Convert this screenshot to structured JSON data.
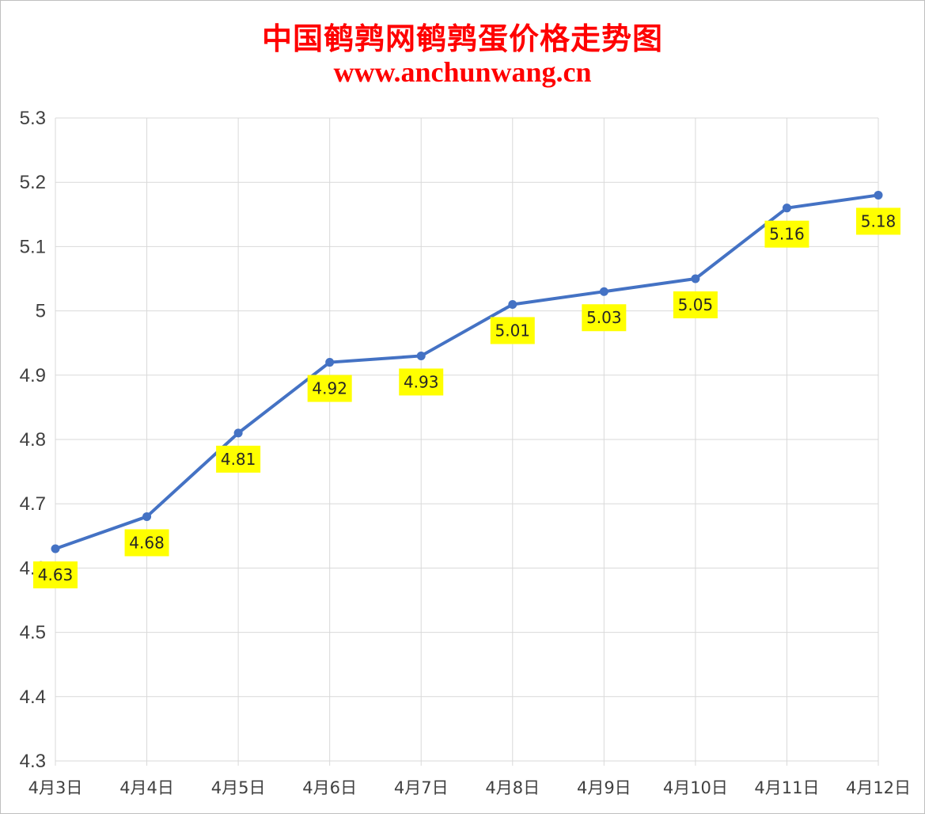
{
  "chart_data": {
    "type": "line",
    "title": "中国鹌鹑网鹌鹑蛋价格走势图",
    "subtitle": "www.anchunwang.cn",
    "categories": [
      "4月3日",
      "4月4日",
      "4月5日",
      "4月6日",
      "4月7日",
      "4月8日",
      "4月9日",
      "4月10日",
      "4月11日",
      "4月12日"
    ],
    "values": [
      4.63,
      4.68,
      4.81,
      4.92,
      4.93,
      5.01,
      5.03,
      5.05,
      5.16,
      5.18
    ],
    "data_labels": [
      "4.63",
      "4.68",
      "4.81",
      "4.92",
      "4.93",
      "5.01",
      "5.03",
      "5.05",
      "5.16",
      "5.18"
    ],
    "yticks": [
      "4.3",
      "4.4",
      "4.5",
      "4.6",
      "4.7",
      "4.8",
      "4.9",
      "5",
      "5.1",
      "5.2",
      "5.3"
    ],
    "ylim": [
      4.3,
      5.3
    ],
    "grid": true,
    "legend": "none",
    "colors": {
      "title": "#ff0000",
      "line": "#4472c4",
      "label_background": "#ffff00",
      "grid": "#d9d9d9"
    }
  }
}
